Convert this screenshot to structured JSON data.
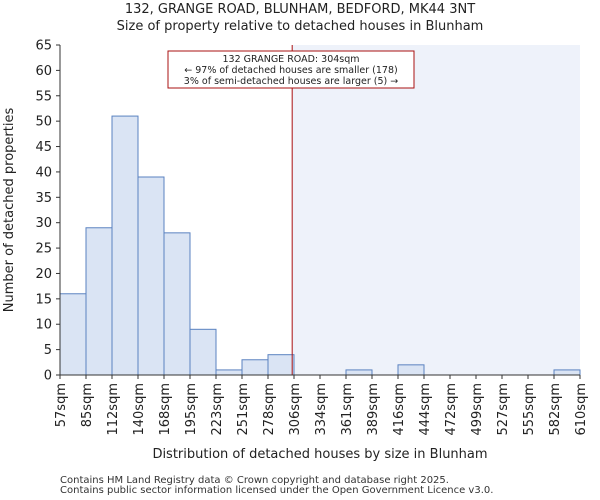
{
  "header": {
    "title": "132, GRANGE ROAD, BLUNHAM, BEDFORD, MK44 3NT",
    "subtitle": "Size of property relative to detached houses in Blunham"
  },
  "footer": {
    "line1": "Contains HM Land Registry data © Crown copyright and database right 2025.",
    "line2": "Contains public sector information licensed under the Open Government Licence v3.0."
  },
  "chart_data": {
    "type": "bar",
    "title": "132, GRANGE ROAD, BLUNHAM, BEDFORD, MK44 3NT",
    "subtitle": "Size of property relative to detached houses in Blunham",
    "xlabel": "Distribution of detached houses by size in Blunham",
    "ylabel": "Number of detached properties",
    "ylim": [
      0,
      65
    ],
    "yticks": [
      0,
      5,
      10,
      15,
      20,
      25,
      30,
      35,
      40,
      45,
      50,
      55,
      60,
      65
    ],
    "bin_edges": [
      "57sqm",
      "85sqm",
      "112sqm",
      "140sqm",
      "168sqm",
      "195sqm",
      "223sqm",
      "251sqm",
      "278sqm",
      "306sqm",
      "334sqm",
      "361sqm",
      "389sqm",
      "416sqm",
      "444sqm",
      "472sqm",
      "499sqm",
      "527sqm",
      "555sqm",
      "582sqm",
      "610sqm"
    ],
    "values": [
      16,
      29,
      51,
      39,
      28,
      9,
      1,
      3,
      4,
      0,
      0,
      1,
      0,
      2,
      0,
      0,
      0,
      0,
      0,
      1
    ],
    "grid": false,
    "marker": {
      "value_sqm": 304,
      "position_bins": 8.93,
      "annotation": [
        "132 GRANGE ROAD: 304sqm",
        "← 97% of detached houses are smaller (178)",
        "3% of semi-detached houses are larger (5) →"
      ]
    },
    "colors": {
      "bar_fill": "#dae4f4",
      "bar_stroke": "#5a82c0",
      "marker_line": "#aa1111",
      "highlight_region": "#eef2fa",
      "axis": "#333333"
    }
  }
}
